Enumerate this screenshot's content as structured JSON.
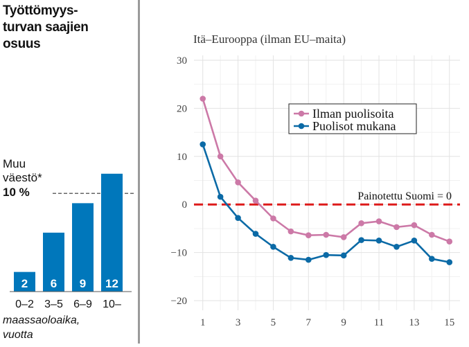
{
  "chart_data": [
    {
      "type": "bar",
      "title_lines": [
        "Työttömyys-",
        "turvan saajien",
        "osuus"
      ],
      "categories": [
        "0–2",
        "3–5",
        "6–9",
        "10–"
      ],
      "values": [
        2,
        6,
        9,
        12
      ],
      "value_labels": [
        "2",
        "6",
        "9",
        "12"
      ],
      "xlabel_lines": [
        "maassaoloaika,",
        "vuotta"
      ],
      "reference_line": {
        "label_lines": [
          "Muu",
          "väestö*"
        ],
        "value_label": "10 %",
        "value": 10
      },
      "ylim": [
        0,
        22
      ],
      "bar_color": "#0077bb"
    },
    {
      "type": "line",
      "title": "Itä–Eurooppa (ilman EU–maita)",
      "x": [
        1,
        2,
        3,
        4,
        5,
        6,
        7,
        8,
        9,
        10,
        11,
        12,
        13,
        14,
        15
      ],
      "series": [
        {
          "name": "Ilman puolisoita",
          "color": "#cc79a7",
          "values": [
            22,
            10,
            4.6,
            0.8,
            -2.9,
            -5.6,
            -6.4,
            -6.3,
            -6.8,
            -3.9,
            -3.5,
            -4.7,
            -4.3,
            -6.3,
            -7.7
          ]
        },
        {
          "name": "Puolisot mukana",
          "color": "#0b6aa6",
          "values": [
            12.5,
            1.6,
            -2.8,
            -6.1,
            -8.8,
            -11.1,
            -11.5,
            -10.5,
            -10.6,
            -7.4,
            -7.5,
            -8.8,
            -7.5,
            -11.3,
            -12.0
          ]
        }
      ],
      "x_ticks": [
        1,
        3,
        5,
        7,
        9,
        11,
        13,
        15
      ],
      "y_ticks": [
        30,
        20,
        10,
        0,
        -10,
        -20
      ],
      "xlim": [
        0.5,
        15.6
      ],
      "ylim": [
        -22,
        31
      ],
      "grid": true,
      "legend_position": "top-right",
      "reference_line": {
        "value": 0,
        "label": "Painotettu Suomi = 0",
        "color": "#dd1a1a"
      }
    }
  ]
}
